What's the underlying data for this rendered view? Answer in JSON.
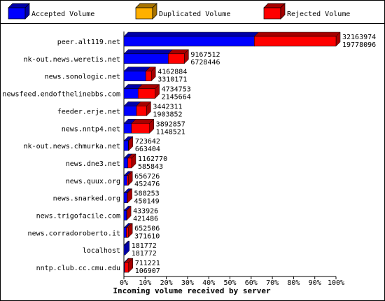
{
  "chart_data": {
    "type": "bar",
    "legend": [
      {
        "name": "Accepted Volume",
        "color": "#0000ff"
      },
      {
        "name": "Duplicated Volume",
        "color": "#ffb000"
      },
      {
        "name": "Rejected Volume",
        "color": "#ff0000"
      }
    ],
    "xlabel": "Incoming volume received by server",
    "categories": [
      "peer.alt119.net",
      "nk-out.news.weretis.net",
      "news.sonologic.net",
      "newsfeed.endofthelinebbs.com",
      "feeder.erje.net",
      "news.nntp4.net",
      "nk-out.news.chmurka.net",
      "news.dne3.net",
      "news.quux.org",
      "news.snarked.org",
      "news.trigofacile.com",
      "news.corradoroberto.it",
      "localhost",
      "nntp.club.cc.cmu.edu"
    ],
    "totals": [
      32163974,
      9167512,
      4162884,
      4734753,
      3442311,
      3892857,
      723642,
      1162770,
      656726,
      588253,
      433926,
      652506,
      181772,
      711221
    ],
    "accepted": [
      19778096,
      6728446,
      3310171,
      2145664,
      1903852,
      1148521,
      663404,
      585843,
      452476,
      450149,
      421486,
      371610,
      181772,
      106907
    ],
    "xlim": [
      0,
      32163974
    ],
    "xticks": [
      {
        "value": 0,
        "label": "0%"
      },
      {
        "value": 3216397.4,
        "label": "10%"
      },
      {
        "value": 6432794.8,
        "label": "20%"
      },
      {
        "value": 9649192.2,
        "label": "30%"
      },
      {
        "value": 12865589.6,
        "label": "40%"
      },
      {
        "value": 16081987,
        "label": "50%"
      },
      {
        "value": 19298384.4,
        "label": "60%"
      },
      {
        "value": 22514781.8,
        "label": "70%"
      },
      {
        "value": 25731179.2,
        "label": "80%"
      },
      {
        "value": 28947576.6,
        "label": "90%"
      },
      {
        "value": 32163974,
        "label": "100%"
      }
    ]
  }
}
